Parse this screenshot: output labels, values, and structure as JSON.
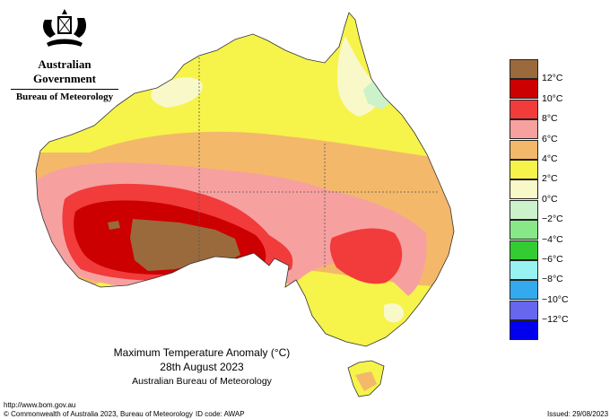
{
  "header": {
    "government": "Australian Government",
    "agency": "Bureau of Meteorology"
  },
  "map": {
    "title": "Maximum Temperature Anomaly (°C)",
    "date": "28th August 2023",
    "credit": "Australian Bureau of Meteorology"
  },
  "legend": {
    "items": [
      {
        "label": "12°C",
        "color": "#9a6a3c"
      },
      {
        "label": "10°C",
        "color": "#cc0000"
      },
      {
        "label": "8°C",
        "color": "#f23b3b"
      },
      {
        "label": "6°C",
        "color": "#f7a0a0"
      },
      {
        "label": "4°C",
        "color": "#f4b86a"
      },
      {
        "label": "2°C",
        "color": "#f6f34a"
      },
      {
        "label": "0°C",
        "color": "#f8f8c8"
      },
      {
        "label": "−2°C",
        "color": "#ccf2cc"
      },
      {
        "label": "−4°C",
        "color": "#88e888"
      },
      {
        "label": "−6°C",
        "color": "#33cc33"
      },
      {
        "label": "−8°C",
        "color": "#99f2f2"
      },
      {
        "label": "−10°C",
        "color": "#33aaee"
      },
      {
        "label": "−12°C",
        "color": "#6666ee"
      },
      {
        "label": "",
        "color": "#0000ee"
      }
    ]
  },
  "footer": {
    "url": "http://www.bom.gov.au",
    "copyright": "© Commonwealth of Australia 2023, Bureau of Meteorology",
    "id_code": "ID code: AWAP",
    "issued": "Issued: 29/08/2023"
  }
}
